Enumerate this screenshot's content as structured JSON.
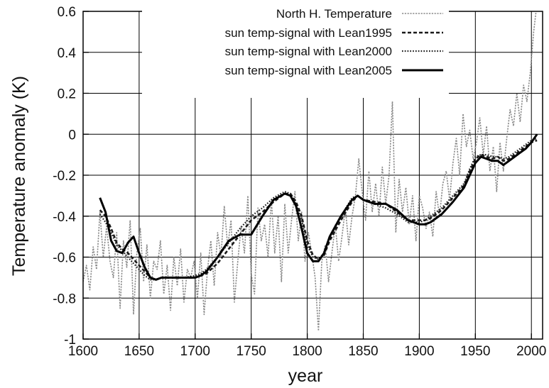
{
  "chart_data": {
    "type": "line",
    "xlabel": "year",
    "ylabel": "Temperature anomaly (K)",
    "xlim": [
      1600,
      2010
    ],
    "ylim": [
      -1,
      0.6
    ],
    "xticks": [
      "1600",
      "1650",
      "1700",
      "1750",
      "1800",
      "1850",
      "1900",
      "1950",
      "2000"
    ],
    "yticks": [
      "-1",
      "-0.8",
      "-0.6",
      "-0.4",
      "-0.2",
      "0",
      "0.2",
      "0.4",
      "0.6"
    ],
    "grid": true,
    "legend_position": "top-right",
    "series": [
      {
        "name": "North H. Temperature",
        "style": "thin-dotted-gray",
        "color": "#8a8a8a",
        "x": [
          1600,
          1603,
          1606,
          1609,
          1612,
          1615,
          1618,
          1621,
          1624,
          1627,
          1630,
          1633,
          1636,
          1639,
          1642,
          1645,
          1648,
          1651,
          1654,
          1657,
          1660,
          1663,
          1666,
          1669,
          1672,
          1675,
          1678,
          1681,
          1684,
          1687,
          1690,
          1693,
          1696,
          1699,
          1702,
          1705,
          1708,
          1711,
          1714,
          1717,
          1720,
          1723,
          1726,
          1729,
          1732,
          1735,
          1738,
          1741,
          1744,
          1747,
          1750,
          1753,
          1756,
          1759,
          1762,
          1765,
          1768,
          1771,
          1774,
          1777,
          1780,
          1783,
          1786,
          1789,
          1792,
          1795,
          1798,
          1801,
          1804,
          1807,
          1810,
          1813,
          1816,
          1819,
          1822,
          1825,
          1828,
          1831,
          1834,
          1837,
          1840,
          1843,
          1846,
          1849,
          1852,
          1855,
          1858,
          1861,
          1864,
          1867,
          1870,
          1873,
          1876,
          1879,
          1882,
          1885,
          1888,
          1891,
          1894,
          1897,
          1900,
          1903,
          1906,
          1909,
          1912,
          1915,
          1918,
          1921,
          1924,
          1927,
          1930,
          1933,
          1936,
          1939,
          1942,
          1945,
          1948,
          1951,
          1954,
          1957,
          1960,
          1963,
          1966,
          1969,
          1972,
          1975,
          1978,
          1981,
          1984,
          1987,
          1990,
          1993,
          1996,
          1999,
          2002,
          2005,
          2008
        ],
        "values": [
          -0.72,
          -0.64,
          -0.76,
          -0.55,
          -0.66,
          -0.38,
          -0.6,
          -0.45,
          -0.62,
          -0.7,
          -0.48,
          -0.85,
          -0.52,
          -0.65,
          -0.42,
          -0.88,
          -0.58,
          -0.46,
          -0.72,
          -0.54,
          -0.8,
          -0.62,
          -0.66,
          -0.52,
          -0.78,
          -0.64,
          -0.86,
          -0.6,
          -0.74,
          -0.56,
          -0.82,
          -0.66,
          -0.7,
          -0.62,
          -0.8,
          -0.58,
          -0.88,
          -0.66,
          -0.52,
          -0.74,
          -0.48,
          -0.6,
          -0.35,
          -0.55,
          -0.42,
          -0.82,
          -0.62,
          -0.45,
          -0.58,
          -0.3,
          -0.68,
          -0.78,
          -0.36,
          -0.52,
          -0.44,
          -0.6,
          -0.32,
          -0.58,
          -0.4,
          -0.72,
          -0.34,
          -0.58,
          -0.42,
          -0.28,
          -0.52,
          -0.38,
          -0.62,
          -0.48,
          -0.58,
          -0.7,
          -0.96,
          -0.62,
          -0.54,
          -0.72,
          -0.58,
          -0.44,
          -0.62,
          -0.5,
          -0.36,
          -0.54,
          -0.4,
          -0.3,
          -0.12,
          -0.28,
          -0.42,
          -0.18,
          -0.38,
          -0.24,
          -0.4,
          -0.16,
          -0.34,
          -0.2,
          0.16,
          -0.48,
          -0.22,
          -0.38,
          -0.26,
          -0.44,
          -0.3,
          -0.52,
          -0.3,
          -0.36,
          -0.46,
          -0.38,
          -0.5,
          -0.28,
          -0.4,
          -0.24,
          -0.18,
          -0.32,
          -0.14,
          -0.02,
          -0.2,
          0.1,
          -0.06,
          0.02,
          -0.12,
          -0.04,
          0.08,
          -0.1,
          0.04,
          -0.18,
          -0.06,
          -0.28,
          -0.04,
          -0.18,
          -0.02,
          0.12,
          0.04,
          0.2,
          0.06,
          0.24,
          0.16,
          0.3,
          0.5,
          0.64,
          0.74
        ]
      },
      {
        "name": "sun temp-signal with Lean1995",
        "style": "dashed",
        "color": "#1a1a1a",
        "x": [
          1615,
          1620,
          1625,
          1630,
          1635,
          1640,
          1645,
          1650,
          1655,
          1660,
          1665,
          1670,
          1680,
          1690,
          1700,
          1705,
          1710,
          1720,
          1730,
          1740,
          1750,
          1760,
          1770,
          1780,
          1785,
          1790,
          1795,
          1800,
          1805,
          1810,
          1815,
          1820,
          1830,
          1840,
          1845,
          1850,
          1860,
          1870,
          1880,
          1890,
          1900,
          1905,
          1910,
          1920,
          1930,
          1940,
          1945,
          1950,
          1955,
          1960,
          1965,
          1970,
          1975,
          1980,
          1985,
          1990,
          1995,
          2000,
          2005
        ],
        "values": [
          -0.37,
          -0.4,
          -0.46,
          -0.53,
          -0.56,
          -0.58,
          -0.61,
          -0.64,
          -0.67,
          -0.7,
          -0.71,
          -0.7,
          -0.7,
          -0.7,
          -0.7,
          -0.69,
          -0.68,
          -0.63,
          -0.56,
          -0.49,
          -0.42,
          -0.38,
          -0.33,
          -0.29,
          -0.29,
          -0.33,
          -0.4,
          -0.52,
          -0.59,
          -0.61,
          -0.59,
          -0.52,
          -0.42,
          -0.33,
          -0.3,
          -0.32,
          -0.33,
          -0.34,
          -0.38,
          -0.42,
          -0.42,
          -0.42,
          -0.41,
          -0.37,
          -0.31,
          -0.25,
          -0.18,
          -0.12,
          -0.1,
          -0.11,
          -0.12,
          -0.11,
          -0.13,
          -0.12,
          -0.1,
          -0.08,
          -0.06,
          -0.04,
          -0.03
        ]
      },
      {
        "name": "sun temp-signal with Lean2000",
        "style": "dotted",
        "color": "#1a1a1a",
        "x": [
          1615,
          1620,
          1625,
          1630,
          1635,
          1640,
          1645,
          1650,
          1655,
          1660,
          1665,
          1670,
          1680,
          1690,
          1700,
          1705,
          1710,
          1720,
          1730,
          1740,
          1750,
          1760,
          1770,
          1780,
          1785,
          1790,
          1795,
          1800,
          1805,
          1810,
          1815,
          1820,
          1830,
          1840,
          1845,
          1850,
          1860,
          1870,
          1880,
          1890,
          1900,
          1905,
          1910,
          1920,
          1930,
          1940,
          1945,
          1950,
          1955,
          1960,
          1965,
          1970,
          1975,
          1980,
          1985,
          1990,
          1995,
          2000,
          2005
        ],
        "values": [
          -0.39,
          -0.43,
          -0.48,
          -0.54,
          -0.57,
          -0.6,
          -0.63,
          -0.66,
          -0.69,
          -0.71,
          -0.71,
          -0.7,
          -0.7,
          -0.7,
          -0.69,
          -0.68,
          -0.66,
          -0.6,
          -0.53,
          -0.46,
          -0.4,
          -0.36,
          -0.31,
          -0.28,
          -0.29,
          -0.34,
          -0.42,
          -0.54,
          -0.6,
          -0.61,
          -0.58,
          -0.5,
          -0.4,
          -0.31,
          -0.3,
          -0.32,
          -0.34,
          -0.36,
          -0.39,
          -0.43,
          -0.43,
          -0.42,
          -0.4,
          -0.36,
          -0.3,
          -0.24,
          -0.17,
          -0.11,
          -0.1,
          -0.1,
          -0.11,
          -0.11,
          -0.12,
          -0.11,
          -0.09,
          -0.07,
          -0.05,
          -0.03,
          -0.02
        ]
      },
      {
        "name": "sun temp-signal with Lean2005",
        "style": "solid-thick",
        "color": "#000000",
        "x": [
          1615,
          1620,
          1625,
          1630,
          1635,
          1640,
          1645,
          1650,
          1655,
          1660,
          1665,
          1670,
          1680,
          1690,
          1700,
          1705,
          1710,
          1720,
          1730,
          1740,
          1750,
          1760,
          1770,
          1780,
          1785,
          1790,
          1795,
          1800,
          1805,
          1810,
          1815,
          1820,
          1830,
          1840,
          1845,
          1850,
          1860,
          1870,
          1880,
          1890,
          1900,
          1905,
          1910,
          1920,
          1930,
          1940,
          1945,
          1950,
          1955,
          1960,
          1965,
          1970,
          1975,
          1980,
          1985,
          1990,
          1995,
          2000,
          2005
        ],
        "values": [
          -0.31,
          -0.38,
          -0.52,
          -0.57,
          -0.58,
          -0.53,
          -0.5,
          -0.58,
          -0.65,
          -0.7,
          -0.71,
          -0.7,
          -0.7,
          -0.7,
          -0.7,
          -0.69,
          -0.67,
          -0.6,
          -0.52,
          -0.49,
          -0.49,
          -0.4,
          -0.32,
          -0.29,
          -0.3,
          -0.35,
          -0.46,
          -0.58,
          -0.62,
          -0.62,
          -0.58,
          -0.5,
          -0.4,
          -0.32,
          -0.3,
          -0.32,
          -0.34,
          -0.34,
          -0.37,
          -0.42,
          -0.44,
          -0.44,
          -0.43,
          -0.39,
          -0.33,
          -0.26,
          -0.2,
          -0.14,
          -0.11,
          -0.12,
          -0.13,
          -0.13,
          -0.15,
          -0.13,
          -0.11,
          -0.09,
          -0.07,
          -0.04,
          0.0
        ]
      }
    ]
  }
}
